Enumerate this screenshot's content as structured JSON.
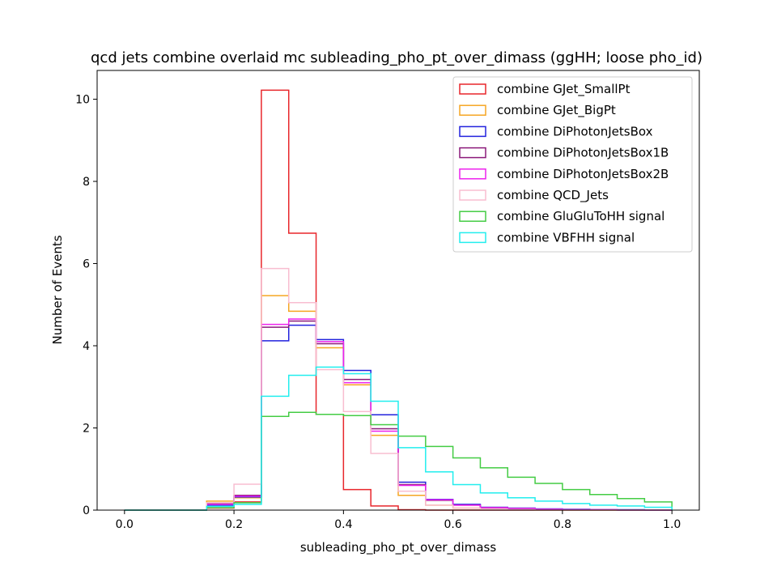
{
  "chart_data": {
    "type": "histogram-step",
    "title": "qcd jets combine overlaid mc subleading_pho_pt_over_dimass (ggHH; loose pho_id)",
    "xlabel": "subleading_pho_pt_over_dimass",
    "ylabel": "Number of Events",
    "xlim": [
      -0.05,
      1.05
    ],
    "ylim": [
      0,
      10.7
    ],
    "xticks": [
      0.0,
      0.2,
      0.4,
      0.6,
      0.8,
      1.0
    ],
    "xtick_labels": [
      "0.0",
      "0.2",
      "0.4",
      "0.6",
      "0.8",
      "1.0"
    ],
    "yticks": [
      0,
      2,
      4,
      6,
      8,
      10
    ],
    "ytick_labels": [
      "0",
      "2",
      "4",
      "6",
      "8",
      "10"
    ],
    "grid": false,
    "legend_position": "top-right",
    "bin_edges": [
      0.0,
      0.05,
      0.1,
      0.15,
      0.2,
      0.25,
      0.3,
      0.35,
      0.4,
      0.45,
      0.5,
      0.55,
      0.6,
      0.65,
      0.7,
      0.75,
      0.8,
      0.85,
      0.9,
      0.95,
      1.0
    ],
    "series": [
      {
        "name": "combine GJet_SmallPt",
        "color": "#e8262b",
        "values": [
          0,
          0,
          0,
          0.05,
          0.2,
          10.22,
          6.74,
          2.33,
          0.5,
          0.1,
          0.01,
          0,
          0,
          0,
          0,
          0,
          0,
          0,
          0,
          0
        ]
      },
      {
        "name": "combine GJet_BigPt",
        "color": "#f5a623",
        "values": [
          0,
          0,
          0,
          0.22,
          0.3,
          5.22,
          4.84,
          3.95,
          3.05,
          1.82,
          0.36,
          0.12,
          0.05,
          0.02,
          0.01,
          0,
          0,
          0,
          0,
          0
        ]
      },
      {
        "name": "combine DiPhotonJetsBox",
        "color": "#2222dd",
        "values": [
          0,
          0,
          0,
          0.12,
          0.32,
          4.12,
          4.5,
          4.15,
          3.4,
          2.32,
          0.68,
          0.26,
          0.14,
          0.07,
          0.05,
          0.03,
          0.02,
          0.01,
          0.01,
          0
        ]
      },
      {
        "name": "combine DiPhotonJetsBox1B",
        "color": "#8b1a7a",
        "values": [
          0,
          0,
          0,
          0.16,
          0.36,
          4.45,
          4.6,
          4.05,
          3.18,
          1.98,
          0.62,
          0.24,
          0.12,
          0.06,
          0.04,
          0.02,
          0.01,
          0.01,
          0,
          0
        ]
      },
      {
        "name": "combine DiPhotonJetsBox2B",
        "color": "#ee22ee",
        "values": [
          0,
          0,
          0,
          0.14,
          0.34,
          4.52,
          4.65,
          4.1,
          3.1,
          1.92,
          0.6,
          0.25,
          0.12,
          0.06,
          0.04,
          0.02,
          0.01,
          0.01,
          0,
          0
        ]
      },
      {
        "name": "combine QCD_Jets",
        "color": "#f8bdd0",
        "values": [
          0,
          0,
          0,
          0.18,
          0.63,
          5.88,
          5.05,
          3.42,
          2.4,
          1.38,
          0.46,
          0.12,
          0.05,
          0.02,
          0.01,
          0,
          0,
          0,
          0,
          0
        ]
      },
      {
        "name": "combine GluGluToHH signal",
        "color": "#44cc44",
        "values": [
          0,
          0,
          0,
          0.06,
          0.18,
          2.28,
          2.38,
          2.33,
          2.3,
          2.08,
          1.8,
          1.55,
          1.27,
          1.03,
          0.8,
          0.65,
          0.5,
          0.38,
          0.28,
          0.2
        ]
      },
      {
        "name": "combine VBFHH signal",
        "color": "#22eeee",
        "values": [
          0,
          0,
          0,
          0.09,
          0.14,
          2.77,
          3.28,
          3.48,
          3.32,
          2.65,
          1.52,
          0.93,
          0.62,
          0.42,
          0.3,
          0.22,
          0.16,
          0.12,
          0.1,
          0.07
        ]
      }
    ]
  }
}
